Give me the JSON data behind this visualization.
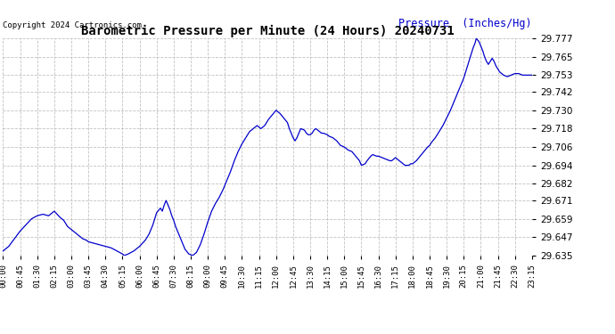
{
  "title": "Barometric Pressure per Minute (24 Hours) 20240731",
  "copyright": "Copyright 2024 Cartronics.com",
  "ylabel": "Pressure  (Inches/Hg)",
  "line_color": "#0000cc",
  "ylabel_color": "#0000cc",
  "background_color": "#ffffff",
  "grid_color": "#bbbbbb",
  "ylim_min": 29.635,
  "ylim_max": 29.777,
  "yticks": [
    29.635,
    29.647,
    29.659,
    29.671,
    29.682,
    29.694,
    29.706,
    29.718,
    29.73,
    29.742,
    29.753,
    29.765,
    29.777
  ],
  "xtick_labels": [
    "00:00",
    "00:45",
    "01:30",
    "02:15",
    "03:00",
    "03:45",
    "04:30",
    "05:15",
    "06:00",
    "06:45",
    "07:30",
    "08:15",
    "09:00",
    "09:45",
    "10:30",
    "11:15",
    "12:00",
    "12:45",
    "13:30",
    "14:15",
    "15:00",
    "15:45",
    "16:30",
    "17:15",
    "18:00",
    "18:45",
    "19:30",
    "20:15",
    "21:00",
    "21:45",
    "22:30",
    "23:15"
  ],
  "x_values": [
    0,
    45,
    90,
    135,
    180,
    225,
    270,
    315,
    360,
    405,
    450,
    495,
    540,
    585,
    630,
    675,
    720,
    765,
    810,
    855,
    900,
    945,
    990,
    1035,
    1080,
    1125,
    1170,
    1215,
    1260,
    1305,
    1350,
    1395
  ],
  "pressure_data": [
    [
      0,
      29.638
    ],
    [
      15,
      29.641
    ],
    [
      30,
      29.646
    ],
    [
      45,
      29.651
    ],
    [
      60,
      29.655
    ],
    [
      75,
      29.659
    ],
    [
      90,
      29.661
    ],
    [
      105,
      29.662
    ],
    [
      120,
      29.661
    ],
    [
      135,
      29.664
    ],
    [
      150,
      29.66
    ],
    [
      160,
      29.658
    ],
    [
      170,
      29.654
    ],
    [
      180,
      29.652
    ],
    [
      190,
      29.65
    ],
    [
      200,
      29.648
    ],
    [
      210,
      29.646
    ],
    [
      220,
      29.645
    ],
    [
      225,
      29.644
    ],
    [
      240,
      29.643
    ],
    [
      255,
      29.642
    ],
    [
      270,
      29.641
    ],
    [
      285,
      29.64
    ],
    [
      300,
      29.638
    ],
    [
      315,
      29.636
    ],
    [
      320,
      29.635
    ],
    [
      330,
      29.636
    ],
    [
      345,
      29.638
    ],
    [
      360,
      29.641
    ],
    [
      375,
      29.645
    ],
    [
      385,
      29.649
    ],
    [
      390,
      29.652
    ],
    [
      395,
      29.655
    ],
    [
      400,
      29.659
    ],
    [
      405,
      29.663
    ],
    [
      415,
      29.666
    ],
    [
      420,
      29.664
    ],
    [
      425,
      29.668
    ],
    [
      430,
      29.671
    ],
    [
      435,
      29.668
    ],
    [
      440,
      29.665
    ],
    [
      445,
      29.661
    ],
    [
      450,
      29.658
    ],
    [
      455,
      29.654
    ],
    [
      460,
      29.651
    ],
    [
      465,
      29.648
    ],
    [
      470,
      29.645
    ],
    [
      475,
      29.642
    ],
    [
      480,
      29.639
    ],
    [
      490,
      29.636
    ],
    [
      500,
      29.635
    ],
    [
      510,
      29.637
    ],
    [
      520,
      29.642
    ],
    [
      530,
      29.649
    ],
    [
      540,
      29.657
    ],
    [
      550,
      29.664
    ],
    [
      560,
      29.669
    ],
    [
      570,
      29.673
    ],
    [
      580,
      29.678
    ],
    [
      590,
      29.684
    ],
    [
      600,
      29.69
    ],
    [
      610,
      29.697
    ],
    [
      620,
      29.703
    ],
    [
      630,
      29.708
    ],
    [
      640,
      29.712
    ],
    [
      650,
      29.716
    ],
    [
      660,
      29.718
    ],
    [
      670,
      29.72
    ],
    [
      675,
      29.719
    ],
    [
      680,
      29.718
    ],
    [
      690,
      29.72
    ],
    [
      700,
      29.724
    ],
    [
      710,
      29.727
    ],
    [
      720,
      29.73
    ],
    [
      730,
      29.728
    ],
    [
      740,
      29.725
    ],
    [
      750,
      29.722
    ],
    [
      755,
      29.718
    ],
    [
      760,
      29.715
    ],
    [
      765,
      29.712
    ],
    [
      770,
      29.71
    ],
    [
      775,
      29.712
    ],
    [
      780,
      29.715
    ],
    [
      785,
      29.718
    ],
    [
      795,
      29.717
    ],
    [
      800,
      29.715
    ],
    [
      805,
      29.714
    ],
    [
      810,
      29.714
    ],
    [
      815,
      29.715
    ],
    [
      820,
      29.717
    ],
    [
      825,
      29.718
    ],
    [
      830,
      29.717
    ],
    [
      835,
      29.716
    ],
    [
      840,
      29.715
    ],
    [
      845,
      29.715
    ],
    [
      855,
      29.714
    ],
    [
      860,
      29.713
    ],
    [
      870,
      29.712
    ],
    [
      880,
      29.71
    ],
    [
      890,
      29.707
    ],
    [
      900,
      29.706
    ],
    [
      910,
      29.704
    ],
    [
      920,
      29.703
    ],
    [
      930,
      29.7
    ],
    [
      940,
      29.697
    ],
    [
      945,
      29.694
    ],
    [
      955,
      29.695
    ],
    [
      960,
      29.697
    ],
    [
      970,
      29.7
    ],
    [
      975,
      29.701
    ],
    [
      985,
      29.7
    ],
    [
      990,
      29.7
    ],
    [
      1000,
      29.699
    ],
    [
      1010,
      29.698
    ],
    [
      1020,
      29.697
    ],
    [
      1025,
      29.697
    ],
    [
      1030,
      29.698
    ],
    [
      1035,
      29.699
    ],
    [
      1040,
      29.698
    ],
    [
      1045,
      29.697
    ],
    [
      1050,
      29.696
    ],
    [
      1055,
      29.695
    ],
    [
      1060,
      29.694
    ],
    [
      1070,
      29.694
    ],
    [
      1075,
      29.695
    ],
    [
      1080,
      29.695
    ],
    [
      1090,
      29.697
    ],
    [
      1100,
      29.7
    ],
    [
      1110,
      29.703
    ],
    [
      1120,
      29.706
    ],
    [
      1125,
      29.707
    ],
    [
      1130,
      29.709
    ],
    [
      1140,
      29.712
    ],
    [
      1150,
      29.716
    ],
    [
      1160,
      29.72
    ],
    [
      1170,
      29.725
    ],
    [
      1180,
      29.73
    ],
    [
      1190,
      29.736
    ],
    [
      1200,
      29.742
    ],
    [
      1210,
      29.748
    ],
    [
      1215,
      29.751
    ],
    [
      1220,
      29.755
    ],
    [
      1225,
      29.759
    ],
    [
      1230,
      29.763
    ],
    [
      1235,
      29.767
    ],
    [
      1240,
      29.771
    ],
    [
      1245,
      29.774
    ],
    [
      1248,
      29.777
    ],
    [
      1255,
      29.775
    ],
    [
      1260,
      29.772
    ],
    [
      1265,
      29.769
    ],
    [
      1270,
      29.765
    ],
    [
      1275,
      29.762
    ],
    [
      1280,
      29.76
    ],
    [
      1285,
      29.762
    ],
    [
      1290,
      29.764
    ],
    [
      1295,
      29.762
    ],
    [
      1300,
      29.759
    ],
    [
      1305,
      29.757
    ],
    [
      1310,
      29.755
    ],
    [
      1315,
      29.754
    ],
    [
      1320,
      29.753
    ],
    [
      1330,
      29.752
    ],
    [
      1340,
      29.753
    ],
    [
      1350,
      29.754
    ],
    [
      1360,
      29.754
    ],
    [
      1370,
      29.753
    ],
    [
      1380,
      29.753
    ],
    [
      1390,
      29.753
    ],
    [
      1395,
      29.753
    ]
  ]
}
